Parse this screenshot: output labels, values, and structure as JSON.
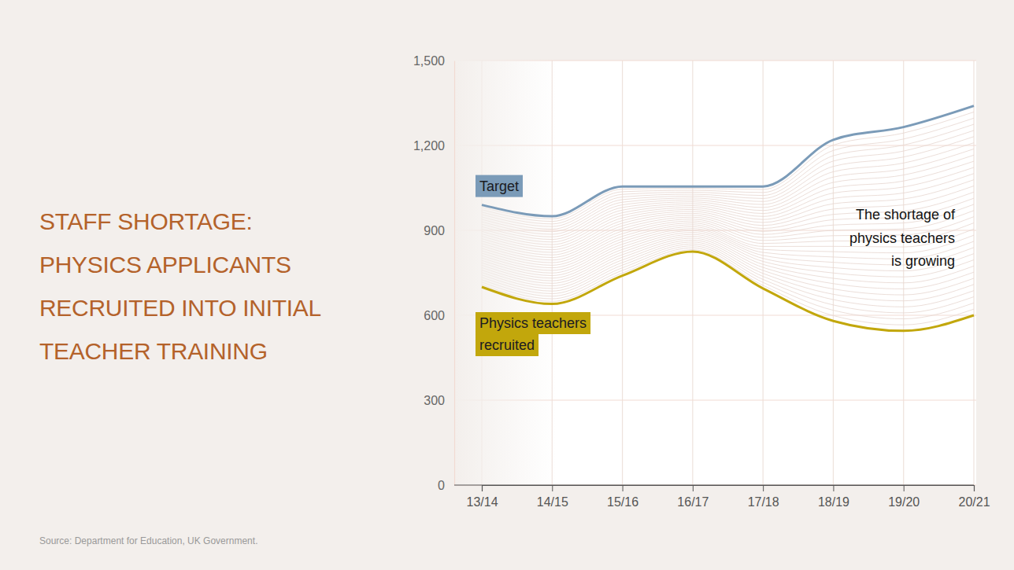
{
  "chart_data": {
    "type": "line",
    "title": [
      "STAFF SHORTAGE:",
      "PHYSICS APPLICANTS",
      "RECRUITED INTO INITIAL",
      "TEACHER TRAINING"
    ],
    "source": "Source: Department for Education, UK Government.",
    "annotation": [
      "The shortage of",
      "physics teachers",
      "is growing"
    ],
    "categories": [
      "13/14",
      "14/15",
      "15/16",
      "16/17",
      "17/18",
      "18/19",
      "19/20",
      "20/21"
    ],
    "series": [
      {
        "name": "Target",
        "color": "#7b9bb8",
        "values": [
          990,
          950,
          1055,
          1055,
          1055,
          1220,
          1265,
          1340
        ]
      },
      {
        "name": "Physics teachers recruited",
        "color": "#c2a70c",
        "values": [
          700,
          640,
          740,
          825,
          695,
          580,
          545,
          600
        ]
      }
    ],
    "ylim": [
      0,
      1500
    ],
    "yticks": [
      0,
      300,
      600,
      900,
      {
        "value": 1200,
        "label": "1,200"
      },
      {
        "value": 1500,
        "label": "1,500"
      }
    ],
    "grid": true
  }
}
